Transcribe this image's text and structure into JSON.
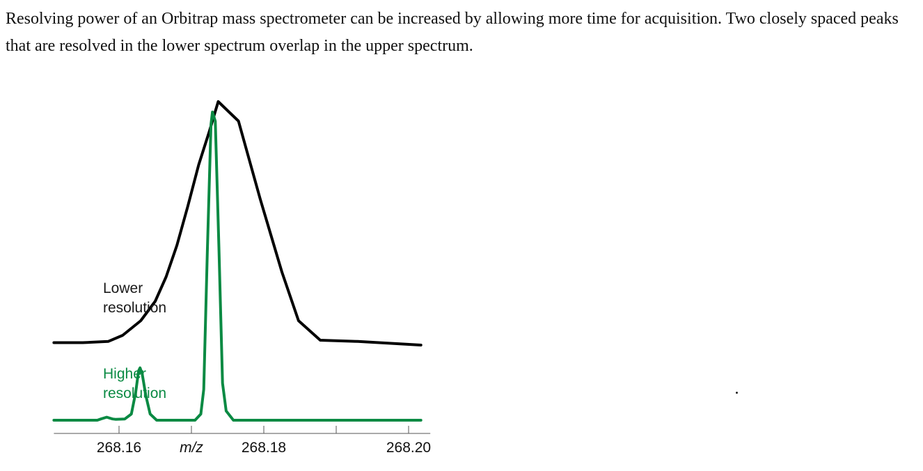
{
  "caption": "Resolving power of an Orbitrap mass spectrometer can be increased by allowing more time for acquisition. Two closely spaced peaks that are resolved in the lower spectrum overlap in the upper spectrum.",
  "chart_data": {
    "type": "line",
    "title": "",
    "xlabel": "m/z",
    "ylabel": "",
    "xlim": [
      268.151,
      268.203
    ],
    "x_ticks": [
      {
        "value": 268.16,
        "label": "268.16"
      },
      {
        "value": 268.17,
        "label": "m/z"
      },
      {
        "value": 268.18,
        "label": "268.18"
      },
      {
        "value": 268.19,
        "label": ""
      },
      {
        "value": 268.2,
        "label": "268.20"
      }
    ],
    "grid": false,
    "legend": "inline labels left",
    "series": [
      {
        "name": "Lower\nresolution",
        "color": "#000000",
        "points": [
          [
            268.151,
            0.01
          ],
          [
            268.155,
            0.01
          ],
          [
            268.1585,
            0.015
          ],
          [
            268.1605,
            0.04
          ],
          [
            268.163,
            0.1
          ],
          [
            268.165,
            0.18
          ],
          [
            268.1665,
            0.28
          ],
          [
            268.168,
            0.41
          ],
          [
            268.1695,
            0.57
          ],
          [
            268.171,
            0.74
          ],
          [
            268.1725,
            0.88
          ],
          [
            268.1737,
            1.0
          ],
          [
            268.1751,
            0.96
          ],
          [
            268.1765,
            0.92
          ],
          [
            268.178,
            0.76
          ],
          [
            268.1795,
            0.6
          ],
          [
            268.181,
            0.45
          ],
          [
            268.1825,
            0.3
          ],
          [
            268.1848,
            0.1
          ],
          [
            268.1878,
            0.02
          ],
          [
            268.193,
            0.015
          ],
          [
            268.2017,
            0.0
          ]
        ]
      },
      {
        "name": "Higher\nresolution",
        "color": "#0a8a43",
        "points": [
          [
            268.151,
            0.0
          ],
          [
            268.157,
            0.0
          ],
          [
            268.1575,
            0.004
          ],
          [
            268.1583,
            0.01
          ],
          [
            268.1591,
            0.004
          ],
          [
            268.1595,
            0.003
          ],
          [
            268.1608,
            0.004
          ],
          [
            268.1617,
            0.02
          ],
          [
            268.1623,
            0.09
          ],
          [
            268.1627,
            0.16
          ],
          [
            268.1629,
            0.17
          ],
          [
            268.1632,
            0.15
          ],
          [
            268.1637,
            0.08
          ],
          [
            268.1643,
            0.02
          ],
          [
            268.1652,
            0.0
          ],
          [
            268.1705,
            0.0
          ],
          [
            268.1713,
            0.02
          ],
          [
            268.1717,
            0.1
          ],
          [
            268.1722,
            0.55
          ],
          [
            268.1727,
            0.96
          ],
          [
            268.1729,
            1.0
          ],
          [
            268.1733,
            0.97
          ],
          [
            268.1738,
            0.56
          ],
          [
            268.1743,
            0.12
          ],
          [
            268.1748,
            0.03
          ],
          [
            268.1758,
            0.0
          ],
          [
            268.2017,
            0.0
          ]
        ]
      }
    ]
  }
}
